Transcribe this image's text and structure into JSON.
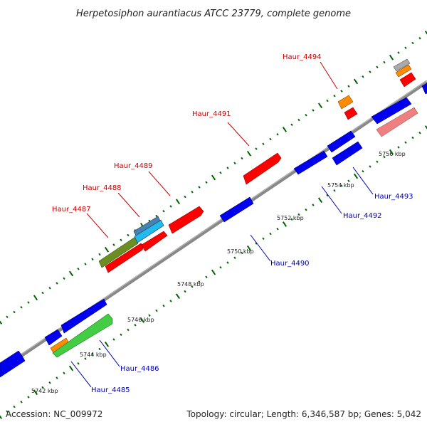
{
  "title": "Herpetosiphon aurantiacus ATCC 23779, complete genome",
  "footer": {
    "accession": "Accession: NC_009972",
    "summary": "Topology: circular; Length: 6,346,587 bp; Genes: 5,042"
  },
  "scale_labels": [
    "5742 kbp",
    "5744 kbp",
    "5746 kbp",
    "5748 kbp",
    "5750 kbp",
    "5752 kbp",
    "5754 kbp",
    "5756 kbp"
  ],
  "gene_labels": [
    {
      "name": "Haur_4487",
      "color": "#cc0000"
    },
    {
      "name": "Haur_4488",
      "color": "#cc0000"
    },
    {
      "name": "Haur_4489",
      "color": "#cc0000"
    },
    {
      "name": "Haur_4491",
      "color": "#cc0000"
    },
    {
      "name": "Haur_4494",
      "color": "#cc0000"
    },
    {
      "name": "Haur_4485",
      "color": "#0000aa"
    },
    {
      "name": "Haur_4486",
      "color": "#0000aa"
    },
    {
      "name": "Haur_4490",
      "color": "#0000aa"
    },
    {
      "name": "Haur_4492",
      "color": "#0000aa"
    },
    {
      "name": "Haur_4493",
      "color": "#0000aa"
    }
  ],
  "colors": {
    "red": "#ff0000",
    "blue": "#0000ee",
    "green": "#44cc44",
    "olive": "#6b8e23",
    "orange": "#ff8c00",
    "cyan": "#22bbee",
    "steel": "#4682b4",
    "pink": "#f08080",
    "grey": "#aaaaaa",
    "backbone": "#888888",
    "tick": "#006400"
  }
}
